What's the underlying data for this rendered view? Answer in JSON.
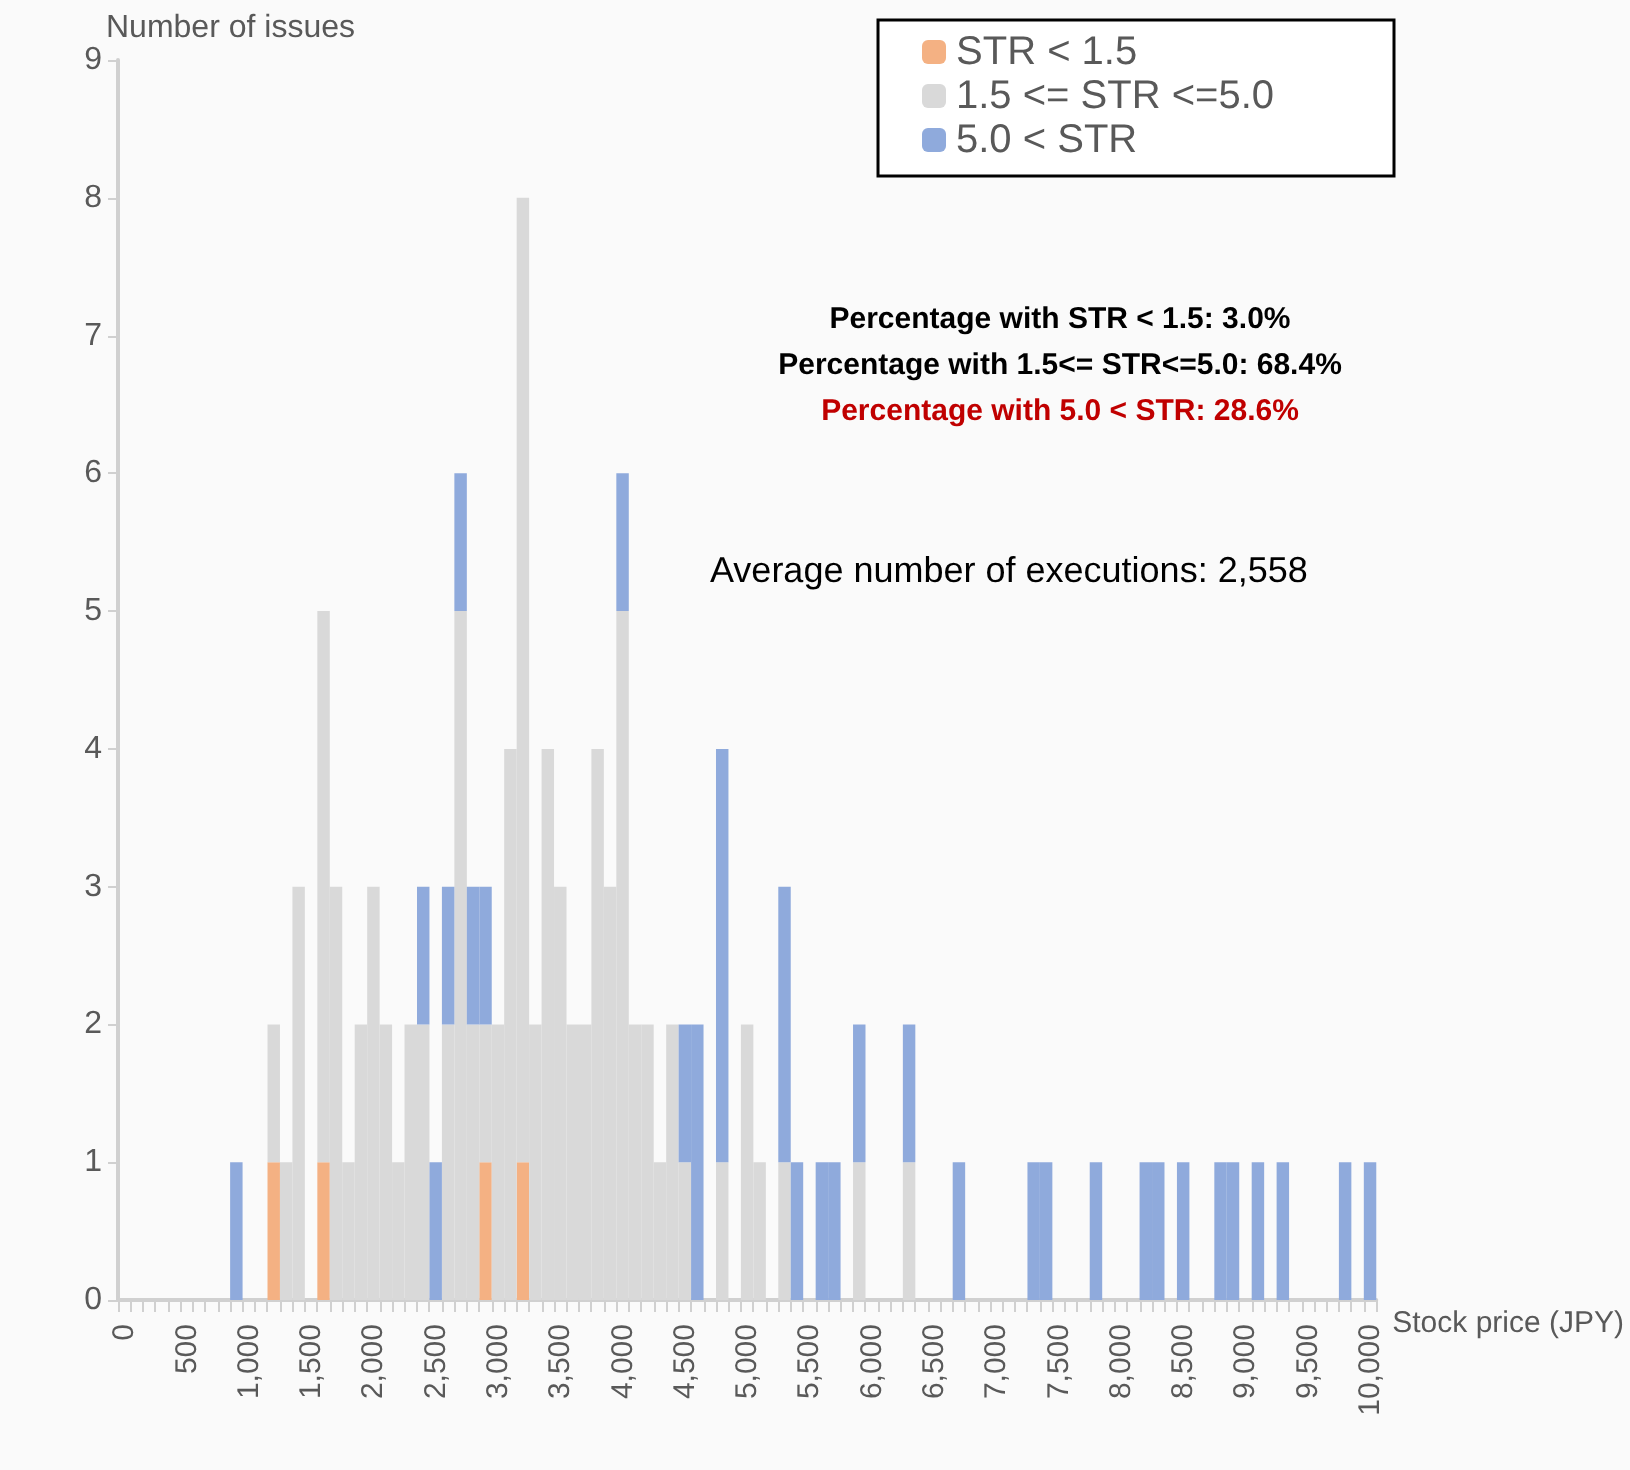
{
  "chart_data": {
    "type": "bar",
    "stacked": true,
    "xlabel": "Stock price (JPY)",
    "ylabel": "Number of issues",
    "categories": [
      "0",
      null,
      null,
      null,
      null,
      "500",
      null,
      null,
      null,
      null,
      "1,000",
      null,
      null,
      null,
      null,
      "1,500",
      null,
      null,
      null,
      null,
      "2,000",
      null,
      null,
      null,
      null,
      "2,500",
      null,
      null,
      null,
      null,
      "3,000",
      null,
      null,
      null,
      null,
      "3,500",
      null,
      null,
      null,
      null,
      "4,000",
      null,
      null,
      null,
      null,
      "4,500",
      null,
      null,
      null,
      null,
      "5,000",
      null,
      null,
      null,
      null,
      "5,500",
      null,
      null,
      null,
      null,
      "6,000",
      null,
      null,
      null,
      null,
      "6,500",
      null,
      null,
      null,
      null,
      "7,000",
      null,
      null,
      null,
      null,
      "7,500",
      null,
      null,
      null,
      null,
      "8,000",
      null,
      null,
      null,
      null,
      "8,500",
      null,
      null,
      null,
      null,
      "9,000",
      null,
      null,
      null,
      null,
      "9,500",
      null,
      null,
      null,
      null,
      "10,000"
    ],
    "series": [
      {
        "name": "STR < 1.5",
        "color": "#f4b183",
        "values": [
          null,
          null,
          null,
          null,
          null,
          null,
          null,
          null,
          null,
          null,
          null,
          null,
          1,
          null,
          null,
          null,
          1,
          null,
          null,
          null,
          null,
          null,
          null,
          null,
          null,
          null,
          null,
          null,
          null,
          1,
          null,
          null,
          1,
          null,
          null,
          null,
          null,
          null,
          null,
          null,
          null,
          null,
          null,
          null,
          null,
          null,
          null,
          null,
          null,
          null,
          null,
          null,
          null,
          null,
          null,
          null,
          null,
          null,
          null,
          null,
          null,
          null,
          null,
          null,
          null,
          null,
          null,
          null,
          null,
          null,
          null,
          null,
          null,
          null,
          null,
          null,
          null,
          null,
          null,
          null,
          null,
          null,
          null,
          null,
          null,
          null,
          null,
          null,
          null,
          null,
          null,
          null,
          null,
          null,
          null,
          null,
          null,
          null,
          null,
          null,
          null
        ]
      },
      {
        "name": "1.5 <= STR <=5.0",
        "color": "#d9d9d9",
        "values": [
          null,
          null,
          null,
          null,
          null,
          null,
          null,
          null,
          null,
          null,
          null,
          null,
          1,
          1,
          3,
          null,
          4,
          3,
          1,
          2,
          3,
          2,
          1,
          2,
          2,
          null,
          2,
          5,
          2,
          1,
          2,
          4,
          7,
          2,
          4,
          3,
          2,
          2,
          4,
          3,
          5,
          2,
          2,
          1,
          2,
          1,
          null,
          null,
          1,
          null,
          2,
          1,
          null,
          1,
          null,
          null,
          null,
          null,
          null,
          1,
          null,
          null,
          null,
          1,
          null,
          null,
          null,
          null,
          null,
          null,
          null,
          null,
          null,
          null,
          null,
          null,
          null,
          null,
          null,
          null,
          null,
          null,
          null,
          null,
          null,
          null,
          null,
          null,
          null,
          null,
          null,
          null,
          null,
          null,
          null,
          null,
          null,
          null,
          null,
          null,
          null
        ]
      },
      {
        "name": "5.0 < STR",
        "color": "#8faadc",
        "values": [
          null,
          null,
          null,
          null,
          null,
          null,
          null,
          null,
          null,
          1,
          null,
          null,
          null,
          null,
          null,
          null,
          null,
          null,
          null,
          null,
          null,
          null,
          null,
          null,
          1,
          1,
          1,
          1,
          1,
          1,
          null,
          null,
          null,
          null,
          null,
          null,
          null,
          null,
          null,
          null,
          1,
          null,
          null,
          null,
          null,
          1,
          2,
          null,
          3,
          null,
          null,
          null,
          null,
          2,
          1,
          null,
          1,
          1,
          null,
          1,
          null,
          null,
          null,
          1,
          null,
          null,
          null,
          1,
          null,
          null,
          null,
          null,
          null,
          1,
          1,
          null,
          null,
          null,
          1,
          null,
          null,
          null,
          1,
          1,
          null,
          1,
          null,
          null,
          1,
          1,
          null,
          1,
          null,
          1,
          null,
          null,
          null,
          null,
          1,
          null,
          1
        ]
      }
    ],
    "ylim": [
      0,
      9
    ],
    "yticks": [
      0,
      1,
      2,
      3,
      4,
      5,
      6,
      7,
      8,
      9
    ],
    "grid": false,
    "legend": "top right",
    "annotations": [
      "Percentage with STR < 1.5: 3.0%",
      "Percentage with 1.5<= STR<=5.0: 68.4%",
      "Percentage with 5.0 < STR: 28.6%",
      "Average number of executions: 2,558"
    ]
  }
}
